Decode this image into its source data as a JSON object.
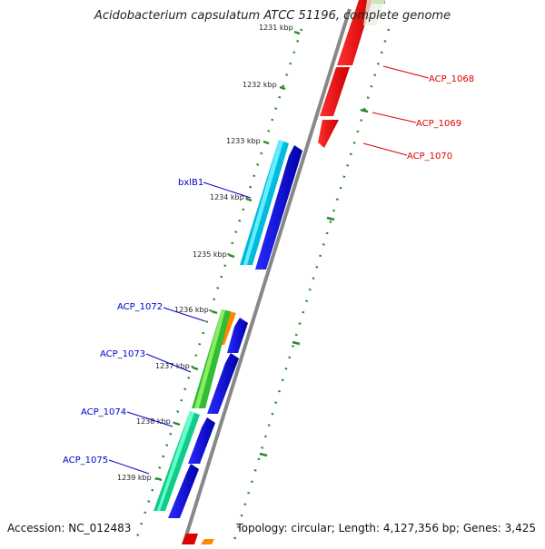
{
  "title": "Acidobacterium capsulatum ATCC 51196, complete genome",
  "footer": {
    "accession": "Accession: NC_012483",
    "summary": "Topology: circular; Length: 4,127,356 bp; Genes: 3,425"
  },
  "colors": {
    "backbone": "#888888",
    "ticks": "#2a8a2a",
    "forward_label": "#0000cc",
    "reverse_label": "#dd0000"
  },
  "ticks": [
    {
      "label": "1231 kbp"
    },
    {
      "label": "1232 kbp"
    },
    {
      "label": "1233 kbp"
    },
    {
      "label": "1234 kbp"
    },
    {
      "label": "1235 kbp"
    },
    {
      "label": "1236 kbp"
    },
    {
      "label": "1237 kbp"
    },
    {
      "label": "1238 kbp"
    },
    {
      "label": "1239 kbp"
    }
  ],
  "gene_labels": {
    "forward": [
      "bxlB1",
      "ACP_1072",
      "ACP_1073",
      "ACP_1074",
      "ACP_1075"
    ],
    "reverse": [
      "ACP_1068",
      "ACP_1069",
      "ACP_1070"
    ]
  }
}
